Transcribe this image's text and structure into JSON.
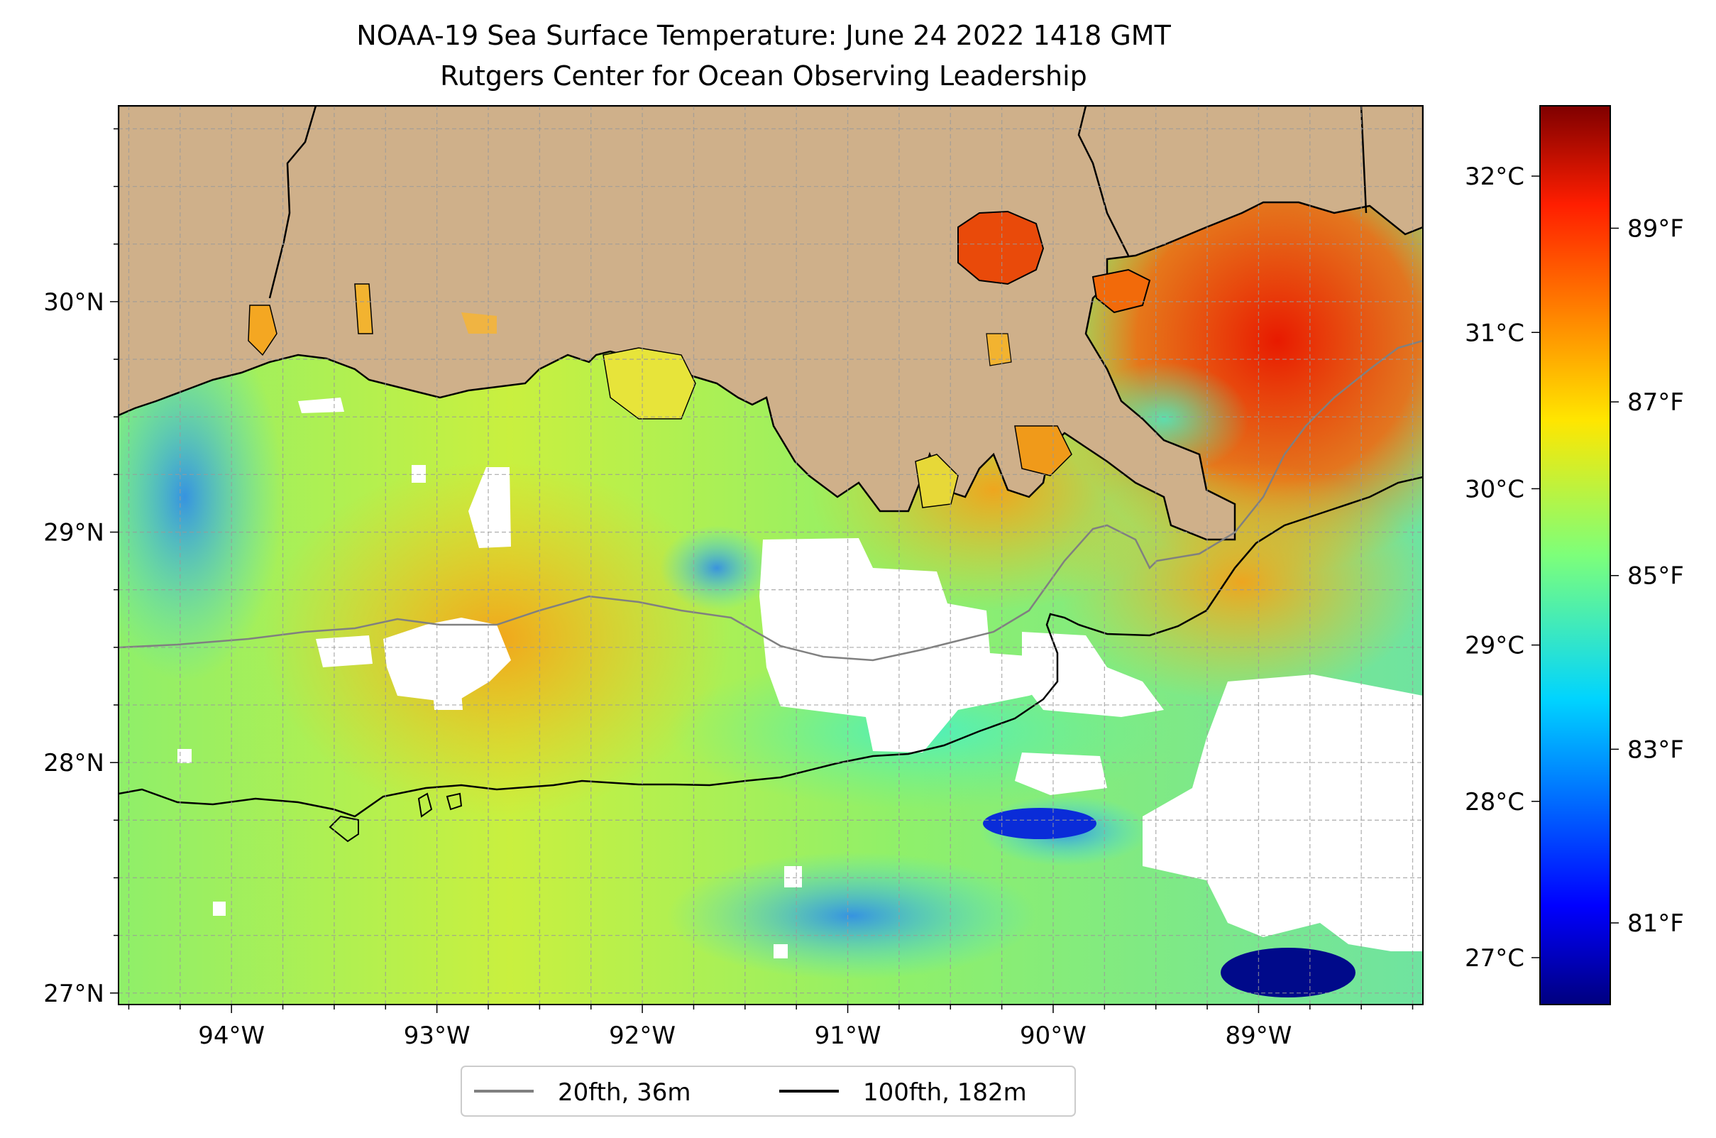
{
  "title": "NOAA-19 Sea Surface Temperature: June 24 2022 1418 GMT",
  "subtitle": "Rutgers Center for Ocean Observing Leadership",
  "map": {
    "lon_range": [
      -94.55,
      -88.2
    ],
    "lat_range": [
      26.95,
      30.85
    ],
    "grid": true,
    "lon_ticks": [
      {
        "value": -94,
        "label": "94°W"
      },
      {
        "value": -93,
        "label": "93°W"
      },
      {
        "value": -92,
        "label": "92°W"
      },
      {
        "value": -91,
        "label": "91°W"
      },
      {
        "value": -90,
        "label": "90°W"
      },
      {
        "value": -89,
        "label": "89°W"
      }
    ],
    "lat_ticks": [
      {
        "value": 27,
        "label": "27°N"
      },
      {
        "value": 28,
        "label": "28°N"
      },
      {
        "value": 29,
        "label": "29°N"
      },
      {
        "value": 30,
        "label": "30°N"
      }
    ],
    "colors": {
      "land": "#cfb08a",
      "cloud": "#ffffff",
      "coast": "#000000"
    }
  },
  "colorbar": {
    "colormap": "jet",
    "range_c": [
      26.7,
      32.45
    ],
    "celsius_ticks": [
      {
        "value": 27,
        "label": "27°C"
      },
      {
        "value": 28,
        "label": "28°C"
      },
      {
        "value": 29,
        "label": "29°C"
      },
      {
        "value": 30,
        "label": "30°C"
      },
      {
        "value": 31,
        "label": "31°C"
      },
      {
        "value": 32,
        "label": "32°C"
      }
    ],
    "fahrenheit_ticks": [
      {
        "value": 81,
        "label": "81°F"
      },
      {
        "value": 83,
        "label": "83°F"
      },
      {
        "value": 85,
        "label": "85°F"
      },
      {
        "value": 87,
        "label": "87°F"
      },
      {
        "value": 89,
        "label": "89°F"
      }
    ]
  },
  "legend": {
    "placement": "bottom-center",
    "entries": [
      {
        "label": "20fth, 36m",
        "color": "#808080"
      },
      {
        "label": "100fth, 182m",
        "color": "#000000"
      }
    ]
  }
}
